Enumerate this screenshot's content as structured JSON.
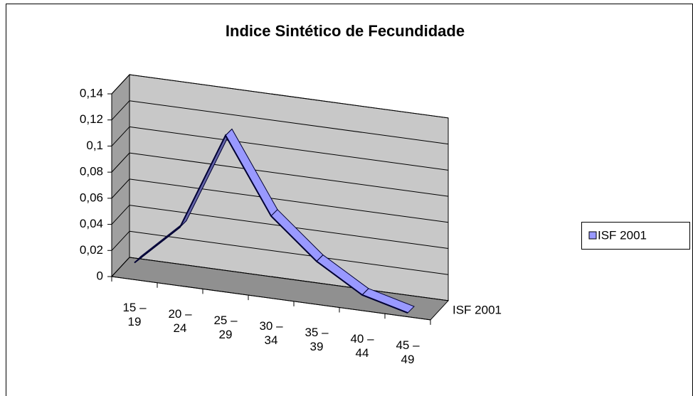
{
  "chart_data": {
    "type": "line3d",
    "title": "Indice Sintético de Fecundidade",
    "categories": [
      "15 – 19",
      "20 – 24",
      "25 – 29",
      "30 – 34",
      "35 – 39",
      "40 – 44",
      "45 – 49"
    ],
    "series": [
      {
        "name": "ISF 2001",
        "color": "#9999ff",
        "values": [
          0.013,
          0.045,
          0.12,
          0.063,
          0.033,
          0.012,
          0.003
        ]
      }
    ],
    "ylim": [
      0,
      0.14
    ],
    "yticks": [
      0,
      {
        "value": 0.02,
        "label": "0,02"
      },
      {
        "value": 0.04,
        "label": "0,04"
      },
      {
        "value": 0.06,
        "label": "0,06"
      },
      {
        "value": 0.08,
        "label": "0,08"
      },
      {
        "value": 0.1,
        "label": "0,1"
      },
      {
        "value": 0.12,
        "label": "0,12"
      },
      {
        "value": 0.14,
        "label": "0,14"
      }
    ],
    "grid": true,
    "legend": "right"
  }
}
